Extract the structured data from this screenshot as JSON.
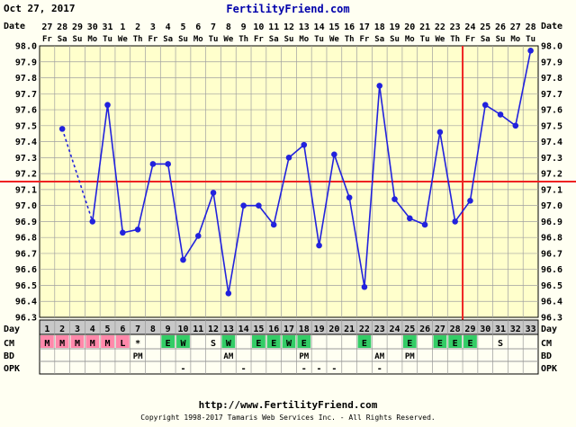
{
  "header": {
    "date": "Oct 27, 2017",
    "site": "FertilityFriend.com"
  },
  "footer": {
    "url": "http://www.FertilityFriend.com",
    "copyright": "Copyright 1998-2017 Tamaris Web Services Inc. - All Rights Reserved."
  },
  "colors": {
    "grid_bg": "#FFFFCC",
    "grid_line": "#A0A0A0",
    "series": "#2222DD",
    "coverline": "#EE2222",
    "ovulation_line": "#EE2222",
    "day_row_bg": "#C8C8C8",
    "period_box": "#FF88AA",
    "cm_box": "#33CC66"
  },
  "chart_data": {
    "type": "line",
    "title": "",
    "row_labels": {
      "date": "Date",
      "day": "Day",
      "cm": "CM",
      "bd": "BD",
      "opk": "OPK"
    },
    "dates": [
      "27",
      "28",
      "29",
      "30",
      "31",
      "1",
      "2",
      "3",
      "4",
      "5",
      "6",
      "7",
      "8",
      "9",
      "10",
      "11",
      "12",
      "13",
      "14",
      "15",
      "16",
      "17",
      "18",
      "19",
      "20",
      "21",
      "22",
      "23",
      "24",
      "25",
      "26",
      "27",
      "28"
    ],
    "weekdays": [
      "Fr",
      "Sa",
      "Su",
      "Mo",
      "Tu",
      "We",
      "Th",
      "Fr",
      "Sa",
      "Su",
      "Mo",
      "Tu",
      "We",
      "Th",
      "Fr",
      "Sa",
      "Su",
      "Mo",
      "Tu",
      "We",
      "Th",
      "Fr",
      "Sa",
      "Su",
      "Mo",
      "Tu",
      "We",
      "Th",
      "Fr",
      "Sa",
      "Su",
      "Mo",
      "Tu"
    ],
    "cycle_days": [
      1,
      2,
      3,
      4,
      5,
      6,
      7,
      8,
      9,
      10,
      11,
      12,
      13,
      14,
      15,
      16,
      17,
      18,
      19,
      20,
      21,
      22,
      23,
      24,
      25,
      26,
      27,
      28,
      29,
      30,
      31,
      32,
      33
    ],
    "y_ticks": [
      "96.3",
      "96.4",
      "96.5",
      "96.6",
      "96.7",
      "96.8",
      "96.9",
      "97.0",
      "97.1",
      "97.2",
      "97.3",
      "97.4",
      "97.5",
      "97.6",
      "97.7",
      "97.8",
      "97.9",
      "98.0"
    ],
    "ylim": [
      96.3,
      98.0
    ],
    "temperatures": [
      null,
      97.48,
      null,
      96.9,
      97.63,
      96.83,
      96.85,
      97.26,
      97.26,
      96.66,
      96.81,
      97.08,
      96.45,
      97.0,
      97.0,
      96.88,
      97.3,
      97.38,
      96.75,
      97.32,
      97.05,
      96.49,
      97.75,
      97.04,
      96.92,
      96.88,
      97.46,
      96.9,
      97.03,
      97.63,
      97.57,
      97.5,
      97.97
    ],
    "dashed_segments": [
      [
        2,
        4
      ]
    ],
    "coverline": 97.15,
    "ovulation_day": 29,
    "cm": [
      "M",
      "M",
      "M",
      "M",
      "M",
      "L",
      "*",
      "",
      "E",
      "W",
      "",
      "S",
      "W",
      "",
      "E",
      "E",
      "W",
      "E",
      "",
      "",
      "",
      "E",
      "",
      "",
      "E",
      "",
      "E",
      "E",
      "E",
      "",
      "S",
      "",
      ""
    ],
    "bd": [
      "",
      "",
      "",
      "",
      "",
      "",
      "PM",
      "",
      "",
      "",
      "",
      "",
      "AM",
      "",
      "",
      "",
      "",
      "PM",
      "",
      "",
      "",
      "",
      "AM",
      "",
      "PM",
      "",
      "",
      "",
      "",
      "",
      "",
      "",
      ""
    ],
    "opk": [
      "",
      "",
      "",
      "",
      "",
      "",
      "",
      "",
      "",
      "-",
      "",
      "",
      "",
      "-",
      "",
      "",
      "",
      "-",
      "-",
      "-",
      "",
      "",
      "-",
      "",
      "",
      "",
      "",
      "",
      "",
      "",
      "",
      "",
      ""
    ]
  }
}
